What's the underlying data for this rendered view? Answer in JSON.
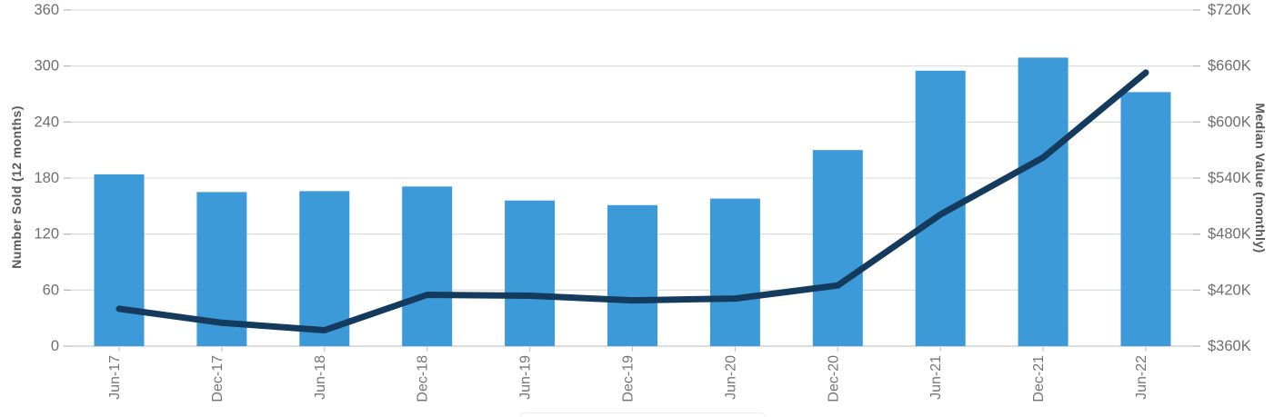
{
  "chart_data": {
    "type": "combo",
    "categories": [
      "Jun-17",
      "Dec-17",
      "Jun-18",
      "Dec-18",
      "Jun-19",
      "Dec-19",
      "Jun-20",
      "Dec-20",
      "Jun-21",
      "Dec-21",
      "Jun-22"
    ],
    "series": [
      {
        "name": "Number Sold (12 months)",
        "type": "bar",
        "axis": "left",
        "values": [
          184,
          165,
          166,
          171,
          156,
          151,
          158,
          210,
          295,
          309,
          272
        ]
      },
      {
        "name": "Median Value (monthly)",
        "type": "line",
        "axis": "right",
        "values_usd_thousands": [
          400,
          385,
          377,
          415,
          414,
          409,
          411,
          425,
          501,
          562,
          653
        ]
      }
    ],
    "left_axis": {
      "title": "Number Sold (12 months)",
      "min": 0,
      "max": 360,
      "step": 60,
      "tick_labels": [
        "0",
        "60",
        "120",
        "180",
        "240",
        "300",
        "360"
      ]
    },
    "right_axis": {
      "title": "Median Value (monthly)",
      "min_usd_thousands": 360,
      "max_usd_thousands": 720,
      "step_usd_thousands": 60,
      "tick_labels": [
        "$360K",
        "$420K",
        "$480K",
        "$540K",
        "$600K",
        "$660K",
        "$720K"
      ]
    },
    "grid": "horizontal-only",
    "legend": "box cropped at bottom edge of view"
  },
  "colors": {
    "bar": "#3B9AD7",
    "line": "#143A5D",
    "gridline": "#D8D8D8",
    "baseline": "#C8C8C8",
    "axis_tick": "#B5B5B5",
    "x_tick": "#C8C8C8",
    "legend_border": "#ECECEC"
  }
}
